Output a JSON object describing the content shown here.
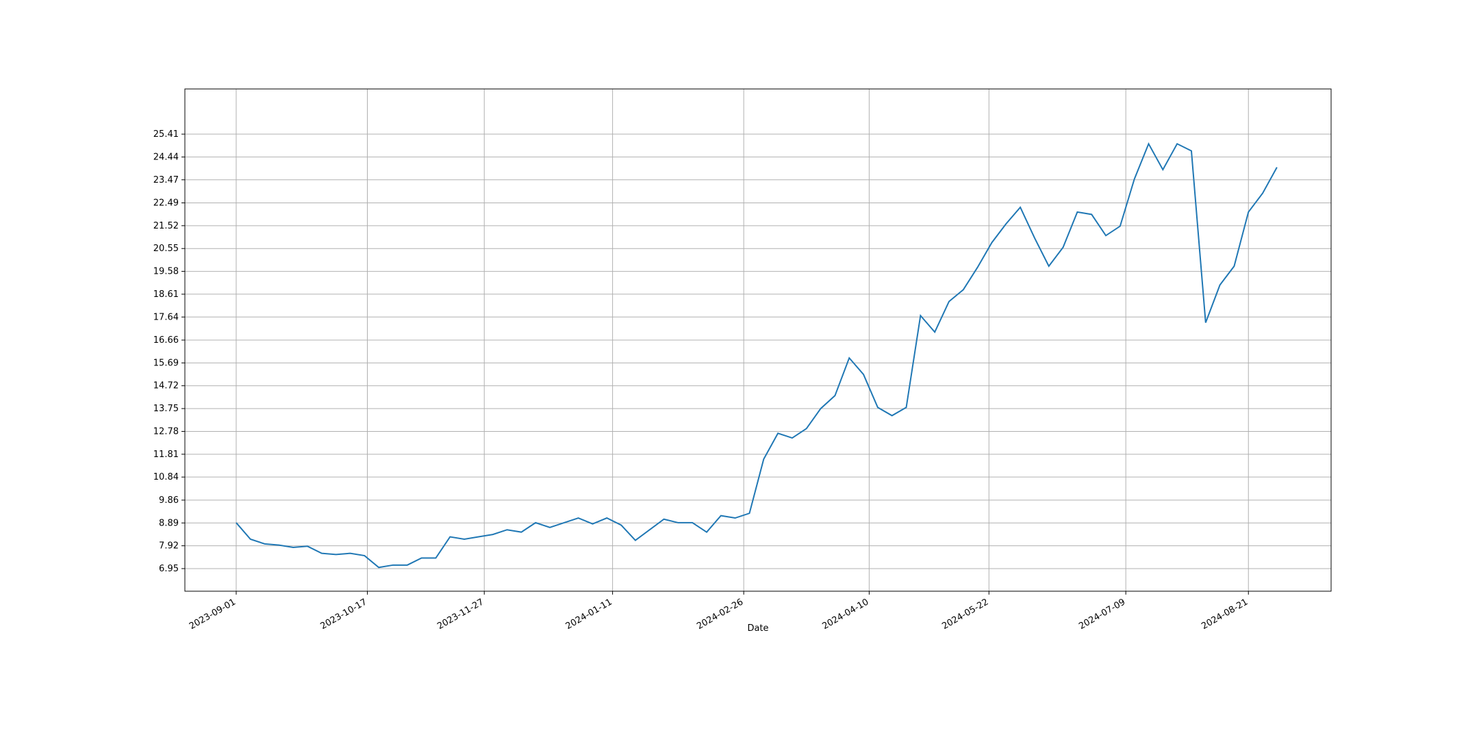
{
  "chart_data": {
    "type": "line",
    "x_label": "Date",
    "x": [
      "2023-09-01",
      "2023-09-06",
      "2023-09-11",
      "2023-09-16",
      "2023-09-21",
      "2023-09-26",
      "2023-10-01",
      "2023-10-06",
      "2023-10-11",
      "2023-10-16",
      "2023-10-21",
      "2023-10-26",
      "2023-10-31",
      "2023-11-05",
      "2023-11-10",
      "2023-11-15",
      "2023-11-20",
      "2023-11-25",
      "2023-11-30",
      "2023-12-05",
      "2023-12-10",
      "2023-12-15",
      "2023-12-20",
      "2023-12-25",
      "2023-12-30",
      "2024-01-04",
      "2024-01-09",
      "2024-01-14",
      "2024-01-19",
      "2024-01-24",
      "2024-01-29",
      "2024-02-03",
      "2024-02-08",
      "2024-02-13",
      "2024-02-18",
      "2024-02-23",
      "2024-02-28",
      "2024-03-04",
      "2024-03-09",
      "2024-03-14",
      "2024-03-19",
      "2024-03-24",
      "2024-03-29",
      "2024-04-03",
      "2024-04-08",
      "2024-04-13",
      "2024-04-18",
      "2024-04-23",
      "2024-04-28",
      "2024-05-03",
      "2024-05-08",
      "2024-05-13",
      "2024-05-18",
      "2024-05-23",
      "2024-05-28",
      "2024-06-02",
      "2024-06-07",
      "2024-06-12",
      "2024-06-17",
      "2024-06-22",
      "2024-06-27",
      "2024-07-02",
      "2024-07-07",
      "2024-07-12",
      "2024-07-17",
      "2024-07-22",
      "2024-07-27",
      "2024-08-01",
      "2024-08-06",
      "2024-08-11",
      "2024-08-16",
      "2024-08-21",
      "2024-08-26",
      "2024-08-31"
    ],
    "series": [
      {
        "color": "#1f77b4",
        "values": [
          8.9,
          8.2,
          8.0,
          7.95,
          7.85,
          7.9,
          7.6,
          7.55,
          7.6,
          7.5,
          7.0,
          7.1,
          7.1,
          7.4,
          7.4,
          8.3,
          8.2,
          8.3,
          8.4,
          8.6,
          8.5,
          8.9,
          8.7,
          8.9,
          9.1,
          8.85,
          9.1,
          8.8,
          8.15,
          8.6,
          9.05,
          8.9,
          8.9,
          8.5,
          9.2,
          9.1,
          9.3,
          11.6,
          12.7,
          12.5,
          12.9,
          13.75,
          14.3,
          15.9,
          15.2,
          13.8,
          13.45,
          13.8,
          17.7,
          17.0,
          18.3,
          18.8,
          19.75,
          20.8,
          21.6,
          22.3,
          21.0,
          19.8,
          20.6,
          22.1,
          22.0,
          21.1,
          21.5,
          23.5,
          25.0,
          23.9,
          25.0,
          24.7,
          17.4,
          19.0,
          19.8,
          22.1,
          22.9,
          24.0
        ]
      }
    ],
    "xlim": [
      "2023-08-14",
      "2024-09-19"
    ],
    "xticks": [
      "2023-09-01",
      "2023-10-17",
      "2023-11-27",
      "2024-01-11",
      "2024-02-26",
      "2024-04-10",
      "2024-05-22",
      "2024-07-09",
      "2024-08-21"
    ],
    "ylim": [
      5.99,
      27.33
    ],
    "yticks": [
      6.95,
      7.92,
      8.89,
      9.86,
      10.84,
      11.81,
      12.78,
      13.75,
      14.72,
      15.69,
      16.66,
      17.64,
      18.61,
      19.58,
      20.55,
      21.52,
      22.49,
      23.47,
      24.44,
      25.41
    ],
    "grid": true
  }
}
